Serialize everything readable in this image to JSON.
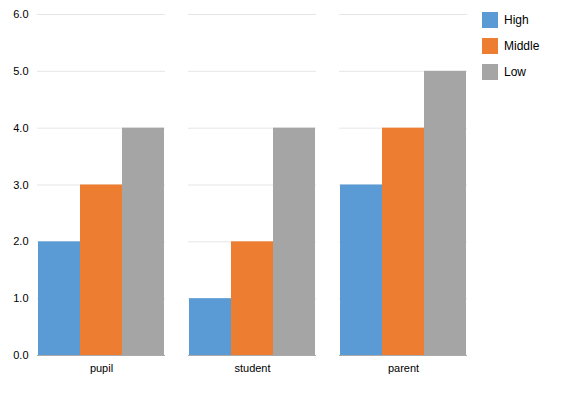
{
  "chart_data": {
    "type": "bar",
    "categories": [
      "pupil",
      "student",
      "parent"
    ],
    "series": [
      {
        "name": "High",
        "color": "#5B9BD5",
        "values": [
          2,
          1,
          3
        ]
      },
      {
        "name": "Middle",
        "color": "#ED7D31",
        "values": [
          3,
          2,
          4
        ]
      },
      {
        "name": "Low",
        "color": "#A5A5A5",
        "values": [
          4,
          4,
          5
        ]
      }
    ],
    "ylim": [
      0,
      6
    ],
    "yticks": [
      0,
      1,
      2,
      3,
      4,
      5,
      6
    ],
    "grid": true,
    "legend": "right"
  }
}
